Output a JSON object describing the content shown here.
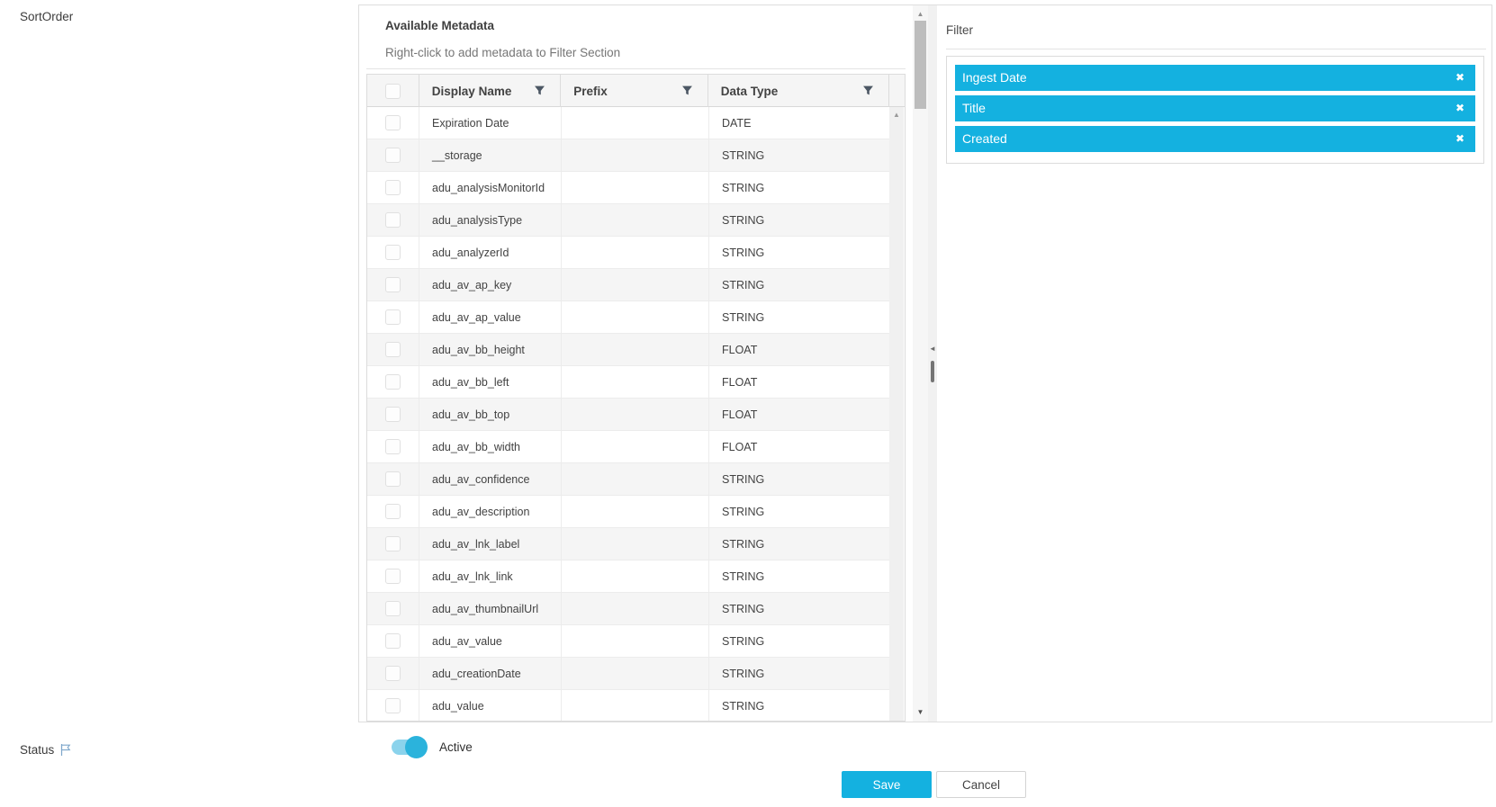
{
  "labels": {
    "sort_order": "SortOrder",
    "status": "Status"
  },
  "metadata_panel": {
    "title": "Available Metadata",
    "subtitle": "Right-click to add metadata to Filter Section",
    "columns": [
      {
        "label": "Display Name"
      },
      {
        "label": "Prefix"
      },
      {
        "label": "Data Type"
      }
    ],
    "rows": [
      {
        "display_name": "Expiration Date",
        "prefix": "",
        "data_type": "DATE"
      },
      {
        "display_name": "__storage",
        "prefix": "",
        "data_type": "STRING"
      },
      {
        "display_name": "adu_analysisMonitorId",
        "prefix": "",
        "data_type": "STRING"
      },
      {
        "display_name": "adu_analysisType",
        "prefix": "",
        "data_type": "STRING"
      },
      {
        "display_name": "adu_analyzerId",
        "prefix": "",
        "data_type": "STRING"
      },
      {
        "display_name": "adu_av_ap_key",
        "prefix": "",
        "data_type": "STRING"
      },
      {
        "display_name": "adu_av_ap_value",
        "prefix": "",
        "data_type": "STRING"
      },
      {
        "display_name": "adu_av_bb_height",
        "prefix": "",
        "data_type": "FLOAT"
      },
      {
        "display_name": "adu_av_bb_left",
        "prefix": "",
        "data_type": "FLOAT"
      },
      {
        "display_name": "adu_av_bb_top",
        "prefix": "",
        "data_type": "FLOAT"
      },
      {
        "display_name": "adu_av_bb_width",
        "prefix": "",
        "data_type": "FLOAT"
      },
      {
        "display_name": "adu_av_confidence",
        "prefix": "",
        "data_type": "STRING"
      },
      {
        "display_name": "adu_av_description",
        "prefix": "",
        "data_type": "STRING"
      },
      {
        "display_name": "adu_av_lnk_label",
        "prefix": "",
        "data_type": "STRING"
      },
      {
        "display_name": "adu_av_lnk_link",
        "prefix": "",
        "data_type": "STRING"
      },
      {
        "display_name": "adu_av_thumbnailUrl",
        "prefix": "",
        "data_type": "STRING"
      },
      {
        "display_name": "adu_av_value",
        "prefix": "",
        "data_type": "STRING"
      },
      {
        "display_name": "adu_creationDate",
        "prefix": "",
        "data_type": "STRING"
      },
      {
        "display_name": "adu_value",
        "prefix": "",
        "data_type": "STRING"
      }
    ]
  },
  "filter_panel": {
    "title": "Filter",
    "chips": [
      {
        "label": "Ingest Date"
      },
      {
        "label": "Title"
      },
      {
        "label": "Created"
      }
    ]
  },
  "status_row": {
    "toggle_label": "Active",
    "toggle_on": true
  },
  "actions": {
    "save": "Save",
    "cancel": "Cancel"
  },
  "icons": {
    "filter": "funnel-icon",
    "remove": "✖",
    "flag": "⚐",
    "scroll_up": "▲",
    "scroll_down": "▼",
    "collapse_left": "◄"
  },
  "colors": {
    "accent": "#14b1e0",
    "toggle_track": "#8bd3ec",
    "row_alt": "#f5f5f5",
    "header_bg": "#f5f5f5"
  }
}
